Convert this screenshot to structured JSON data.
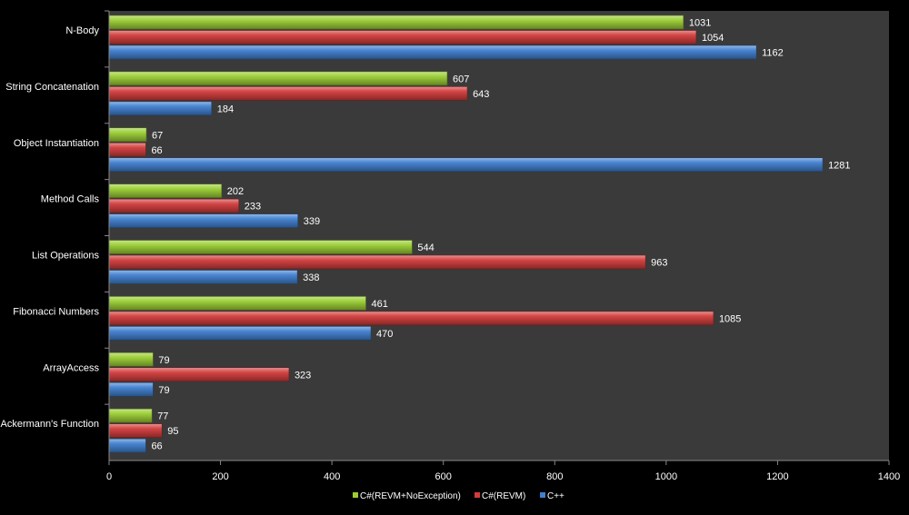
{
  "chart_data": {
    "type": "bar",
    "orientation": "horizontal",
    "categories": [
      "N-Body",
      "String Concatenation",
      "Object Instantiation",
      "Method Calls",
      "List Operations",
      "Fibonacci Numbers",
      "ArrayAccess",
      "Ackermann's Function"
    ],
    "series": [
      {
        "name": "C#(REVM+NoException)",
        "color": "#9acd32",
        "values": [
          1031,
          607,
          67,
          202,
          544,
          461,
          79,
          77
        ]
      },
      {
        "name": "C#(REVM)",
        "color": "#d23b3b",
        "values": [
          1054,
          643,
          66,
          233,
          963,
          1085,
          323,
          95
        ]
      },
      {
        "name": "C++",
        "color": "#3f7fd0",
        "values": [
          1162,
          184,
          1281,
          339,
          338,
          470,
          79,
          66
        ]
      }
    ],
    "xlim": [
      0,
      1400
    ],
    "x_ticks": [
      0,
      200,
      400,
      600,
      800,
      1000,
      1200,
      1400
    ],
    "grid": false,
    "legend_position": "bottom",
    "plot_background": "#3a3a3a",
    "page_background": "#000000",
    "text_color": "#ffffff"
  }
}
